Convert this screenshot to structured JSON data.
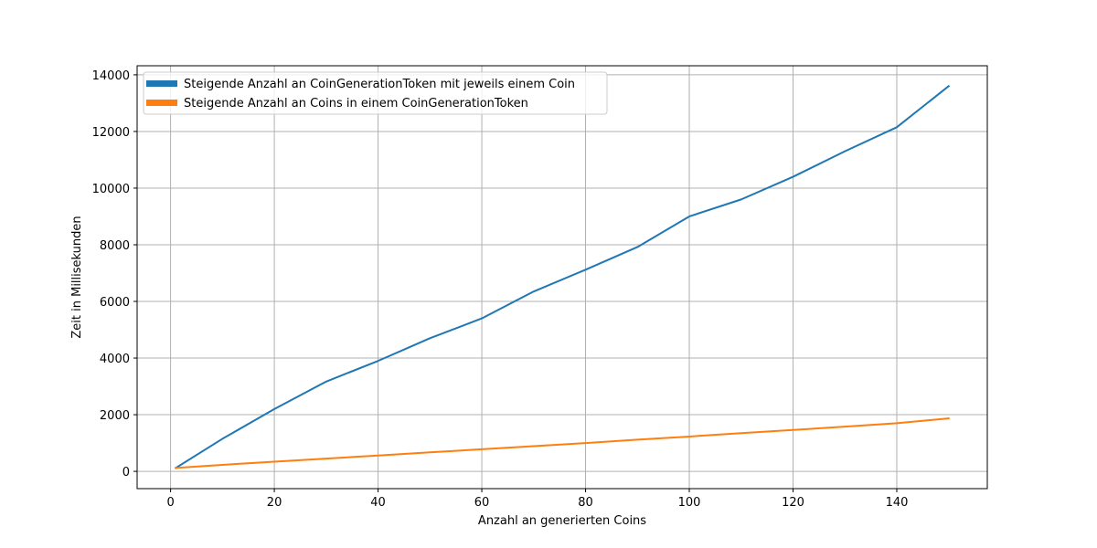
{
  "chart_data": {
    "type": "line",
    "xlabel": "Anzahl an generierten Coins",
    "ylabel": "Zeit in Millisekunden",
    "xlim": [
      -6.45,
      157.45
    ],
    "ylim": [
      -610,
      14320
    ],
    "xticks": [
      0,
      20,
      40,
      60,
      80,
      100,
      120,
      140
    ],
    "yticks": [
      0,
      2000,
      4000,
      6000,
      8000,
      10000,
      12000,
      14000
    ],
    "grid": true,
    "legend_position": "top-left",
    "series": [
      {
        "name": "Steigende Anzahl an CoinGenerationToken mit jeweils einem Coin",
        "color": "#1f77b4",
        "x": [
          1,
          10,
          20,
          30,
          40,
          50,
          60,
          70,
          80,
          90,
          100,
          110,
          120,
          130,
          140,
          150
        ],
        "y": [
          120,
          1150,
          2200,
          3170,
          3900,
          4700,
          5400,
          6350,
          7120,
          7920,
          9000,
          9600,
          10400,
          11300,
          12150,
          13600
        ]
      },
      {
        "name": "Steigende Anzahl an Coins in einem CoinGenerationToken",
        "color": "#ff7f0e",
        "x": [
          1,
          10,
          20,
          30,
          40,
          50,
          60,
          70,
          80,
          90,
          100,
          110,
          120,
          130,
          140,
          150
        ],
        "y": [
          120,
          230,
          340,
          450,
          560,
          670,
          780,
          890,
          1000,
          1120,
          1230,
          1350,
          1460,
          1580,
          1700,
          1870
        ]
      }
    ]
  }
}
